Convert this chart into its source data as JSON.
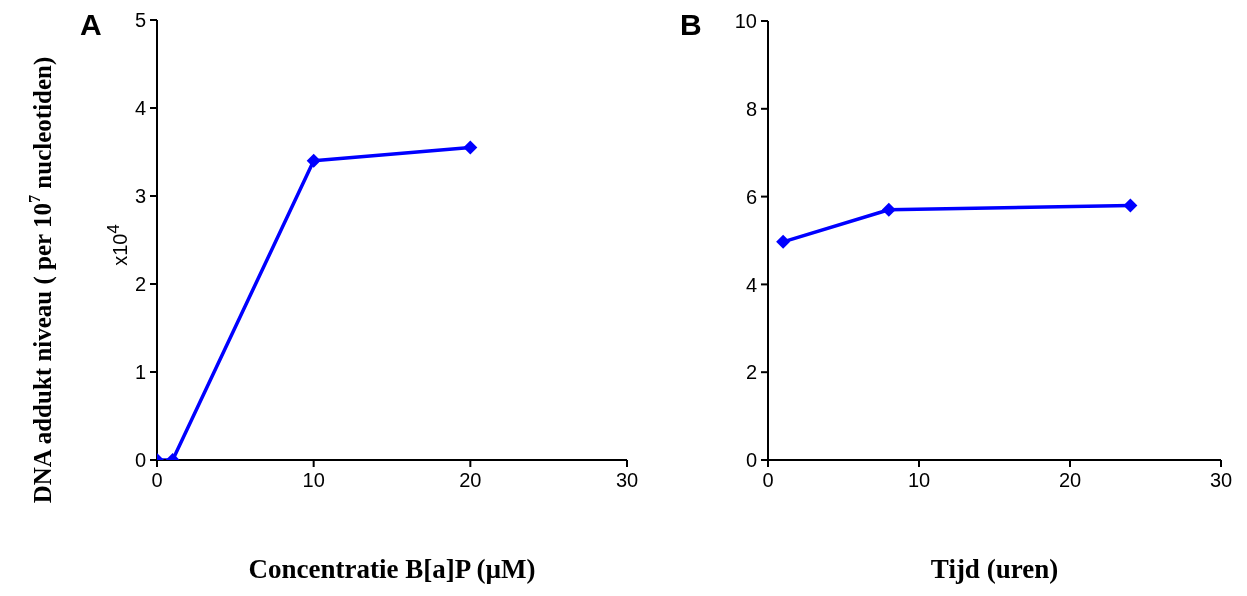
{
  "chart_data": [
    {
      "type": "line",
      "title": "A",
      "xlabel": "Concentratie B[a]P (µM)",
      "ylabel": "DNA addukt niveau ( per 10$^{7}$ nucleotiden)",
      "annotations": [
        "x10$^{4}$"
      ],
      "x": [
        0,
        1,
        10,
        20
      ],
      "series": [
        {
          "color": "#0000ff",
          "values": [
            0,
            0,
            3.4,
            3.55
          ]
        }
      ],
      "xlim": [
        0,
        30
      ],
      "xticks": [
        0,
        10,
        20,
        30
      ],
      "ylim": [
        0,
        5
      ],
      "yticks": [
        0,
        1,
        2,
        3,
        4,
        5
      ],
      "marker": "diamond",
      "line_style": "solid"
    },
    {
      "type": "line",
      "title": "B",
      "xlabel": "Tijd (uren)",
      "x": [
        1,
        8,
        24
      ],
      "series": [
        {
          "color": "#0000ff",
          "values": [
            4.97,
            5.7,
            5.8
          ]
        }
      ],
      "xlim": [
        0,
        30
      ],
      "xticks": [
        0,
        10,
        20,
        30
      ],
      "ylim": [
        0,
        10
      ],
      "yticks": [
        0,
        2,
        4,
        6,
        8,
        10
      ],
      "marker": "diamond",
      "line_style": "solid"
    }
  ]
}
